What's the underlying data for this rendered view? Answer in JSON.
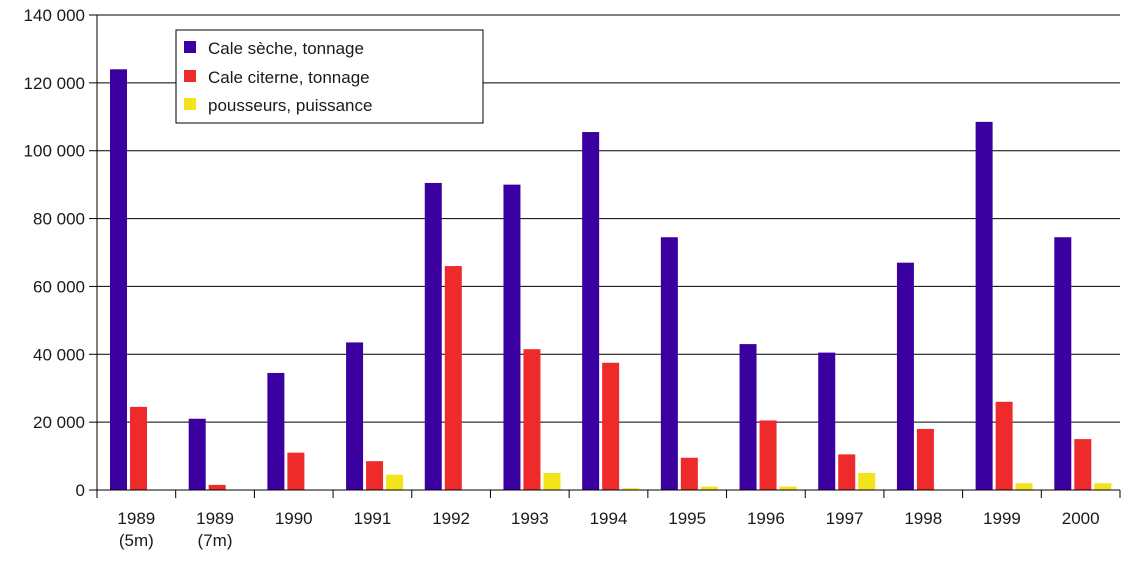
{
  "chart_data": {
    "type": "bar",
    "categories": [
      [
        "1989",
        "(5m)"
      ],
      [
        "1989",
        "(7m)"
      ],
      [
        "1990"
      ],
      [
        "1991"
      ],
      [
        "1992"
      ],
      [
        "1993"
      ],
      [
        "1994"
      ],
      [
        "1995"
      ],
      [
        "1996"
      ],
      [
        "1997"
      ],
      [
        "1998"
      ],
      [
        "1999"
      ],
      [
        "2000"
      ]
    ],
    "series": [
      {
        "name": "Cale sèche, tonnage",
        "color": "#3a00a0",
        "values": [
          124000,
          21000,
          34500,
          43500,
          90500,
          90000,
          105500,
          74500,
          43000,
          40500,
          67000,
          108500,
          74500
        ]
      },
      {
        "name": "Cale citerne, tonnage",
        "color": "#ee2a2a",
        "values": [
          24500,
          1500,
          11000,
          8500,
          66000,
          41500,
          37500,
          9500,
          20500,
          10500,
          18000,
          26000,
          15000
        ]
      },
      {
        "name": "pousseurs, puissance",
        "color": "#f2e31b",
        "values": [
          0,
          0,
          0,
          4500,
          0,
          5000,
          500,
          1000,
          1000,
          5000,
          0,
          2000,
          2000
        ]
      }
    ],
    "ylim": [
      0,
      140000
    ],
    "yticks": [
      0,
      20000,
      40000,
      60000,
      80000,
      100000,
      120000,
      140000
    ],
    "ytick_labels": [
      "0",
      "20 000",
      "40 000",
      "60 000",
      "80 000",
      "100 000",
      "120 000",
      "140 000"
    ],
    "title": "",
    "xlabel": "",
    "ylabel": "",
    "grid": "horizontal",
    "legend_position": "top-left"
  }
}
